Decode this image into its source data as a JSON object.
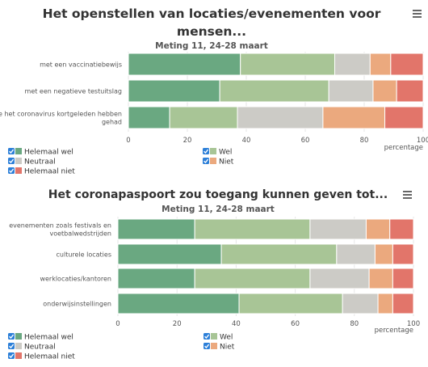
{
  "legend_items": [
    {
      "label": "Helemaal wel",
      "color": "#6aa881"
    },
    {
      "label": "Wel",
      "color": "#a8c596"
    },
    {
      "label": "Neutraal",
      "color": "#cccbc6"
    },
    {
      "label": "Niet",
      "color": "#eba97e"
    },
    {
      "label": "Helemaal niet",
      "color": "#e2756a"
    }
  ],
  "chart_data": [
    {
      "type": "bar",
      "stacked": true,
      "orientation": "horizontal",
      "title": "Het openstellen van locaties/evenementen voor mensen...",
      "title_lines": [
        "Het openstellen van locaties/evenementen voor",
        "mensen..."
      ],
      "subtitle": "Meting 11, 24-28 maart",
      "xlabel": "percentage",
      "xlim": [
        0,
        100
      ],
      "xticks": [
        "0",
        "20",
        "40",
        "60",
        "80",
        "100"
      ],
      "categories": [
        "met een vaccinatiebewijs",
        "met een negatieve testuitslag",
        "die het coronavirus kortgeleden hebben gehad"
      ],
      "category_lines": [
        [
          "met een vaccinatiebewijs"
        ],
        [
          "met een negatieve testuitslag"
        ],
        [
          "die het coronavirus kortgeleden hebben",
          "gehad"
        ]
      ],
      "series": [
        {
          "name": "Helemaal wel",
          "values": [
            38,
            31,
            14
          ]
        },
        {
          "name": "Wel",
          "values": [
            32,
            37,
            23
          ]
        },
        {
          "name": "Neutraal",
          "values": [
            12,
            15,
            29
          ]
        },
        {
          "name": "Niet",
          "values": [
            7,
            8,
            21
          ]
        },
        {
          "name": "Helemaal niet",
          "values": [
            11,
            9,
            13
          ]
        }
      ]
    },
    {
      "type": "bar",
      "stacked": true,
      "orientation": "horizontal",
      "title": "Het coronapaspoort zou toegang kunnen geven tot...",
      "title_lines": [
        "Het coronapaspoort zou toegang kunnen geven tot..."
      ],
      "subtitle": "Meting 11, 24-28 maart",
      "xlabel": "percentage",
      "xlim": [
        0,
        100
      ],
      "xticks": [
        "0",
        "20",
        "40",
        "60",
        "80",
        "100"
      ],
      "categories": [
        "evenementen zoals festivals en voetbalwedstrijden",
        "culturele locaties",
        "werklocaties/kantoren",
        "onderwijsinstellingen"
      ],
      "category_lines": [
        [
          "evenementen zoals festivals en",
          "voetbalwedstrijden"
        ],
        [
          "culturele locaties"
        ],
        [
          "werklocaties/kantoren"
        ],
        [
          "onderwijsinstellingen"
        ]
      ],
      "series": [
        {
          "name": "Helemaal wel",
          "values": [
            26,
            35,
            26,
            41
          ]
        },
        {
          "name": "Wel",
          "values": [
            39,
            39,
            39,
            35
          ]
        },
        {
          "name": "Neutraal",
          "values": [
            19,
            13,
            20,
            12
          ]
        },
        {
          "name": "Niet",
          "values": [
            8,
            6,
            8,
            5
          ]
        },
        {
          "name": "Helemaal niet",
          "values": [
            8,
            7,
            7,
            7
          ]
        }
      ]
    }
  ]
}
